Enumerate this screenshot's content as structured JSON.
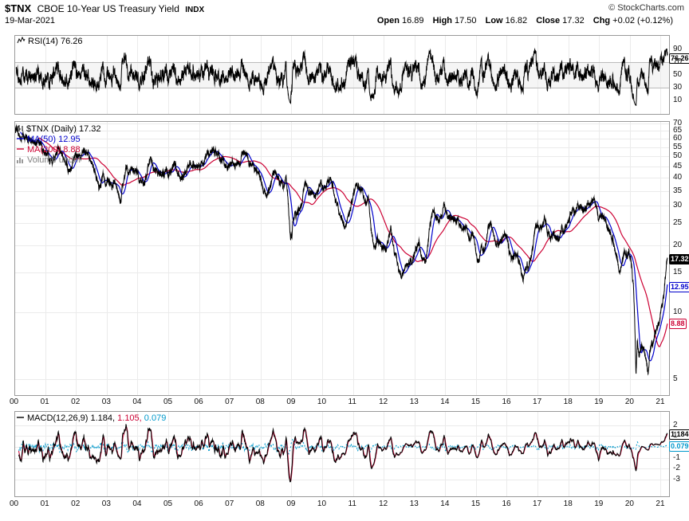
{
  "header": {
    "symbol": "$TNX",
    "title": "CBOE 10-Year US Treasury Yield",
    "exchange": "INDX",
    "date": "19-Mar-2021",
    "copyright": "© StockCharts.com",
    "quote": {
      "open_label": "Open",
      "open_value": "16.89",
      "high_label": "High",
      "high_value": "17.50",
      "low_label": "Low",
      "low_value": "16.82",
      "close_label": "Close",
      "close_value": "17.32",
      "chg_label": "Chg",
      "chg_value": "+0.02 (+0.12%)"
    }
  },
  "panels": {
    "rsi": {
      "legend": "RSI(14) 76.26",
      "badge": "76.26"
    },
    "price": {
      "legend_main": "$TNX (Daily) 17.32",
      "legend_ma50": "MA(50) 12.95",
      "legend_ma200": "MA(200) 8.88",
      "legend_volume": "Volume undef",
      "badge_price": "17.32",
      "badge_ma50": "12.95",
      "badge_ma200": "8.88"
    },
    "macd": {
      "legend_label": "MACD(12,26,9)",
      "legend_macd": "1.184,",
      "legend_signal": "1.105,",
      "legend_hist": "0.079",
      "badge_macd": "1.184",
      "badge_hist": "0.079"
    }
  },
  "x_axis": {
    "labels": [
      "00",
      "01",
      "02",
      "03",
      "04",
      "05",
      "06",
      "07",
      "08",
      "09",
      "10",
      "11",
      "12",
      "13",
      "14",
      "15",
      "16",
      "17",
      "18",
      "19",
      "20",
      "21"
    ]
  },
  "colors": {
    "price": "#000000",
    "ma50": "#0000cc",
    "ma200": "#cc0033",
    "macd": "#000000",
    "signal": "#cc0033",
    "histogram": "#0099cc",
    "grid": "#ebebeb",
    "border": "#999999",
    "band_fill": "#f5f5f5",
    "band_line": "#bbbbbb"
  },
  "chart_data": [
    {
      "type": "line",
      "panel": "rsi",
      "title": "RSI(14)",
      "last_value": 76.26,
      "ylim": [
        -12,
        112
      ],
      "yticks": [
        90,
        70,
        50,
        30,
        10
      ],
      "band": [
        30,
        70
      ]
    },
    {
      "type": "line",
      "panel": "price",
      "title": "$TNX (Daily)",
      "scale": "log",
      "x_range": [
        2000.0,
        2021.22
      ],
      "axis_end": 2021.3,
      "ylim": [
        4.2,
        72
      ],
      "yticks": [
        70,
        65,
        60,
        55,
        50,
        45,
        40,
        35,
        30,
        25,
        20,
        15,
        10,
        5
      ],
      "series": [
        {
          "name": "$TNX close",
          "last": 17.32,
          "keypoints": [
            [
              2000.0,
              64.4
            ],
            [
              2000.06,
              66.6
            ],
            [
              2000.1,
              65.2
            ],
            [
              2000.22,
              59.0
            ],
            [
              2000.3,
              62.0
            ],
            [
              2000.42,
              61.5
            ],
            [
              2000.55,
              59.0
            ],
            [
              2000.7,
              57.2
            ],
            [
              2000.85,
              57.5
            ],
            [
              2000.95,
              52.0
            ],
            [
              2001.05,
              50.2
            ],
            [
              2001.17,
              47.5
            ],
            [
              2001.28,
              49.2
            ],
            [
              2001.4,
              54.2
            ],
            [
              2001.5,
              52.5
            ],
            [
              2001.6,
              49.5
            ],
            [
              2001.7,
              46.5
            ],
            [
              2001.78,
              43.5
            ],
            [
              2001.83,
              42.5
            ],
            [
              2001.92,
              48.0
            ],
            [
              2002.0,
              50.5
            ],
            [
              2002.1,
              48.8
            ],
            [
              2002.22,
              53.5
            ],
            [
              2002.35,
              51.5
            ],
            [
              2002.48,
              48.5
            ],
            [
              2002.6,
              43.0
            ],
            [
              2002.73,
              37.5
            ],
            [
              2002.78,
              36.2
            ],
            [
              2002.88,
              40.5
            ],
            [
              2002.97,
              38.2
            ],
            [
              2003.05,
              40.0
            ],
            [
              2003.17,
              36.8
            ],
            [
              2003.28,
              39.0
            ],
            [
              2003.38,
              34.0
            ],
            [
              2003.45,
              31.3
            ],
            [
              2003.55,
              38.0
            ],
            [
              2003.63,
              45.5
            ],
            [
              2003.72,
              42.5
            ],
            [
              2003.82,
              44.0
            ],
            [
              2003.9,
              42.0
            ],
            [
              2003.97,
              43.5
            ],
            [
              2004.05,
              40.5
            ],
            [
              2004.13,
              38.3
            ],
            [
              2004.21,
              37.2
            ],
            [
              2004.35,
              45.0
            ],
            [
              2004.45,
              48.5
            ],
            [
              2004.55,
              45.5
            ],
            [
              2004.65,
              42.5
            ],
            [
              2004.78,
              40.3
            ],
            [
              2004.9,
              42.5
            ],
            [
              2005.0,
              42.2
            ],
            [
              2005.1,
              44.0
            ],
            [
              2005.22,
              46.2
            ],
            [
              2005.32,
              42.0
            ],
            [
              2005.43,
              39.2
            ],
            [
              2005.55,
              42.5
            ],
            [
              2005.68,
              44.5
            ],
            [
              2005.8,
              46.5
            ],
            [
              2005.92,
              44.5
            ],
            [
              2006.03,
              44.5
            ],
            [
              2006.15,
              46.5
            ],
            [
              2006.28,
              50.0
            ],
            [
              2006.4,
              51.5
            ],
            [
              2006.5,
              52.4
            ],
            [
              2006.62,
              49.8
            ],
            [
              2006.75,
              46.5
            ],
            [
              2006.88,
              46.0
            ],
            [
              2007.0,
              47.0
            ],
            [
              2007.1,
              47.5
            ],
            [
              2007.2,
              45.5
            ],
            [
              2007.33,
              47.5
            ],
            [
              2007.45,
              52.5
            ],
            [
              2007.55,
              50.0
            ],
            [
              2007.65,
              46.5
            ],
            [
              2007.78,
              45.5
            ],
            [
              2007.88,
              42.5
            ],
            [
              2007.97,
              40.5
            ],
            [
              2008.07,
              36.5
            ],
            [
              2008.18,
              34.5
            ],
            [
              2008.3,
              35.5
            ],
            [
              2008.4,
              40.5
            ],
            [
              2008.47,
              42.5
            ],
            [
              2008.57,
              39.5
            ],
            [
              2008.68,
              37.8
            ],
            [
              2008.78,
              37.5
            ],
            [
              2008.83,
              40.0
            ],
            [
              2008.9,
              30.0
            ],
            [
              2008.97,
              21.5
            ],
            [
              2009.03,
              23.0
            ],
            [
              2009.12,
              28.0
            ],
            [
              2009.22,
              27.5
            ],
            [
              2009.32,
              30.0
            ],
            [
              2009.42,
              37.0
            ],
            [
              2009.47,
              39.5
            ],
            [
              2009.57,
              35.0
            ],
            [
              2009.67,
              34.5
            ],
            [
              2009.75,
              32.0
            ],
            [
              2009.85,
              34.0
            ],
            [
              2009.95,
              38.0
            ],
            [
              2010.05,
              36.5
            ],
            [
              2010.15,
              37.5
            ],
            [
              2010.27,
              39.5
            ],
            [
              2010.38,
              34.5
            ],
            [
              2010.5,
              30.5
            ],
            [
              2010.62,
              26.5
            ],
            [
              2010.75,
              24.0
            ],
            [
              2010.83,
              26.5
            ],
            [
              2010.92,
              29.0
            ],
            [
              2011.0,
              33.5
            ],
            [
              2011.1,
              36.5
            ],
            [
              2011.2,
              34.5
            ],
            [
              2011.3,
              34.5
            ],
            [
              2011.42,
              30.5
            ],
            [
              2011.5,
              31.5
            ],
            [
              2011.58,
              25.0
            ],
            [
              2011.65,
              20.0
            ],
            [
              2011.72,
              18.0
            ],
            [
              2011.8,
              21.5
            ],
            [
              2011.88,
              20.0
            ],
            [
              2011.97,
              19.0
            ],
            [
              2012.07,
              19.8
            ],
            [
              2012.17,
              22.0
            ],
            [
              2012.23,
              23.5
            ],
            [
              2012.33,
              19.5
            ],
            [
              2012.43,
              17.5
            ],
            [
              2012.55,
              14.5
            ],
            [
              2012.65,
              15.5
            ],
            [
              2012.75,
              17.0
            ],
            [
              2012.85,
              16.5
            ],
            [
              2012.95,
              17.2
            ],
            [
              2013.05,
              19.0
            ],
            [
              2013.15,
              20.0
            ],
            [
              2013.25,
              17.5
            ],
            [
              2013.35,
              16.5
            ],
            [
              2013.45,
              21.5
            ],
            [
              2013.52,
              25.5
            ],
            [
              2013.62,
              28.5
            ],
            [
              2013.7,
              26.5
            ],
            [
              2013.78,
              26.0
            ],
            [
              2013.88,
              27.5
            ],
            [
              2013.97,
              30.0
            ],
            [
              2014.07,
              27.0
            ],
            [
              2014.2,
              26.8
            ],
            [
              2014.33,
              26.0
            ],
            [
              2014.45,
              25.5
            ],
            [
              2014.57,
              24.8
            ],
            [
              2014.7,
              23.5
            ],
            [
              2014.78,
              20.0
            ],
            [
              2014.83,
              22.0
            ],
            [
              2014.92,
              21.8
            ],
            [
              2015.02,
              18.0
            ],
            [
              2015.09,
              16.8
            ],
            [
              2015.18,
              20.0
            ],
            [
              2015.28,
              19.0
            ],
            [
              2015.4,
              23.5
            ],
            [
              2015.47,
              24.5
            ],
            [
              2015.58,
              22.5
            ],
            [
              2015.7,
              21.0
            ],
            [
              2015.8,
              20.3
            ],
            [
              2015.9,
              22.5
            ],
            [
              2016.0,
              22.5
            ],
            [
              2016.08,
              18.5
            ],
            [
              2016.15,
              17.0
            ],
            [
              2016.25,
              18.0
            ],
            [
              2016.35,
              17.8
            ],
            [
              2016.45,
              16.0
            ],
            [
              2016.52,
              13.9
            ],
            [
              2016.6,
              15.5
            ],
            [
              2016.7,
              15.8
            ],
            [
              2016.8,
              17.5
            ],
            [
              2016.88,
              22.0
            ],
            [
              2016.95,
              25.5
            ],
            [
              2017.03,
              24.5
            ],
            [
              2017.13,
              24.0
            ],
            [
              2017.22,
              26.0
            ],
            [
              2017.32,
              23.5
            ],
            [
              2017.43,
              21.8
            ],
            [
              2017.52,
              23.0
            ],
            [
              2017.62,
              21.5
            ],
            [
              2017.68,
              20.8
            ],
            [
              2017.78,
              23.2
            ],
            [
              2017.88,
              23.5
            ],
            [
              2017.97,
              24.0
            ],
            [
              2018.07,
              27.5
            ],
            [
              2018.15,
              29.0
            ],
            [
              2018.25,
              28.0
            ],
            [
              2018.32,
              30.2
            ],
            [
              2018.42,
              29.5
            ],
            [
              2018.52,
              28.5
            ],
            [
              2018.62,
              29.0
            ],
            [
              2018.72,
              30.5
            ],
            [
              2018.8,
              31.5
            ],
            [
              2018.86,
              32.3
            ],
            [
              2018.93,
              29.9
            ],
            [
              2019.0,
              26.9
            ],
            [
              2019.08,
              27.2
            ],
            [
              2019.18,
              25.5
            ],
            [
              2019.27,
              24.5
            ],
            [
              2019.37,
              22.5
            ],
            [
              2019.47,
              20.5
            ],
            [
              2019.55,
              18.5
            ],
            [
              2019.63,
              15.5
            ],
            [
              2019.67,
              14.7
            ],
            [
              2019.75,
              16.5
            ],
            [
              2019.8,
              18.0
            ],
            [
              2019.88,
              17.8
            ],
            [
              2019.97,
              19.0
            ],
            [
              2020.05,
              16.5
            ],
            [
              2020.12,
              13.0
            ],
            [
              2020.17,
              8.0
            ],
            [
              2020.2,
              5.2
            ],
            [
              2020.24,
              7.2
            ],
            [
              2020.3,
              6.3
            ],
            [
              2020.38,
              6.8
            ],
            [
              2020.45,
              6.7
            ],
            [
              2020.52,
              6.2
            ],
            [
              2020.58,
              5.4
            ],
            [
              2020.65,
              6.6
            ],
            [
              2020.72,
              7.0
            ],
            [
              2020.78,
              7.5
            ],
            [
              2020.85,
              8.3
            ],
            [
              2020.92,
              8.8
            ],
            [
              2020.98,
              9.3
            ],
            [
              2021.05,
              11.0
            ],
            [
              2021.1,
              12.0
            ],
            [
              2021.15,
              14.2
            ],
            [
              2021.19,
              16.3
            ],
            [
              2021.22,
              17.3
            ]
          ]
        },
        {
          "name": "MA(50)",
          "period": 50,
          "last": 12.95
        },
        {
          "name": "MA(200)",
          "period": 200,
          "last": 8.88
        }
      ]
    },
    {
      "type": "line",
      "panel": "macd",
      "title": "MACD(12,26,9)",
      "ylim": [
        -4.6,
        3.3
      ],
      "yticks": [
        2,
        1,
        -1,
        -2,
        -3
      ],
      "last_values": {
        "macd": 1.184,
        "signal": 1.105,
        "histogram": 0.079
      }
    }
  ]
}
